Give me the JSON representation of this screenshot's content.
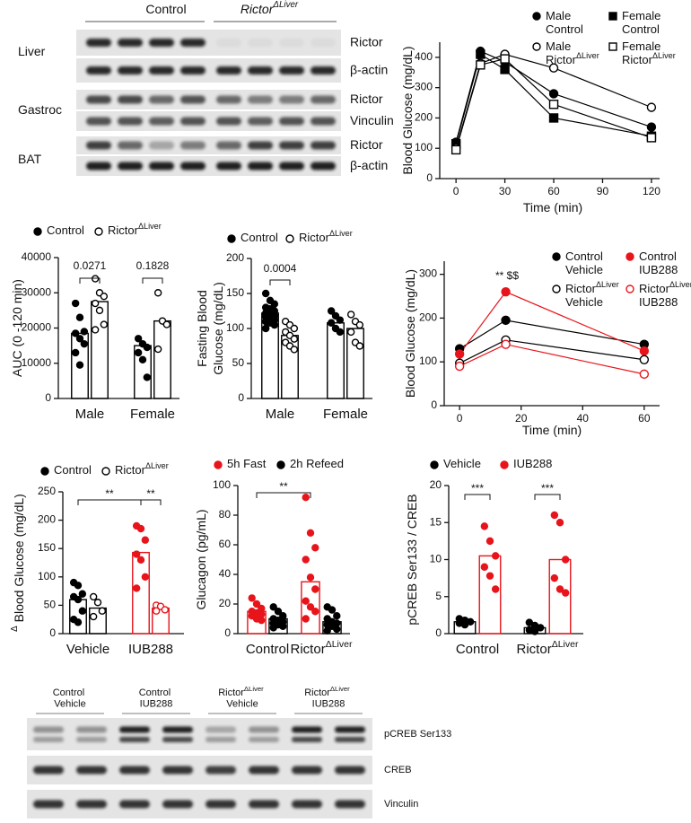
{
  "chart_data": [
    {
      "type": "line",
      "ylabel": "Blood Glucose (mg/dL)",
      "xlabel": "Time (min)",
      "x": [
        0,
        15,
        30,
        60,
        120
      ],
      "xlim": [
        -10,
        125
      ],
      "xticks": [
        0,
        30,
        60,
        90,
        120
      ],
      "ylim": [
        0,
        450
      ],
      "yticks": [
        0,
        100,
        200,
        300,
        400
      ],
      "series": [
        {
          "name": "Male Control",
          "color": "#000000",
          "marker": "circle",
          "filled": true,
          "values": [
            120,
            420,
            385,
            280,
            170
          ]
        },
        {
          "name": "Female Control",
          "color": "#000000",
          "marker": "square",
          "filled": true,
          "values": [
            115,
            410,
            360,
            200,
            140
          ]
        },
        {
          "name": "Male RictorΔLiver",
          "color": "#000000",
          "marker": "circle",
          "filled": false,
          "values": [
            100,
            380,
            410,
            365,
            235
          ]
        },
        {
          "name": "Female RictorΔLiver",
          "color": "#000000",
          "marker": "square",
          "filled": false,
          "values": [
            95,
            375,
            395,
            245,
            135
          ]
        }
      ]
    },
    {
      "type": "bar",
      "ylabel": "AUC (0 -120 min)",
      "categories": [
        "Male",
        "Female"
      ],
      "ylim": [
        0,
        40000
      ],
      "yticks": [
        0,
        10000,
        20000,
        30000,
        40000
      ],
      "series": [
        {
          "name": "Control",
          "color": "#000000",
          "filled": true,
          "values": [
            18500,
            15000
          ],
          "points": [
            [
              27000,
              23000,
              19000,
              18500,
              17000,
              15500,
              13000,
              9500
            ],
            [
              17000,
              15500,
              14500,
              13000,
              11000,
              6000
            ]
          ]
        },
        {
          "name": "RictorΔLiver",
          "color": "#000000",
          "filled": false,
          "values": [
            27500,
            22000
          ],
          "points": [
            [
              34000,
              30000,
              29000,
              27000,
              25000,
              21000,
              19500
            ],
            [
              30000,
              22000,
              21000,
              14000
            ]
          ]
        }
      ],
      "annotations": [
        "0.0271",
        "0.1828"
      ]
    },
    {
      "type": "bar",
      "ylabel": [
        "Fasting Blood",
        "Glucose (mg/dL)"
      ],
      "categories": [
        "Male",
        "Female"
      ],
      "ylim": [
        0,
        200
      ],
      "yticks": [
        0,
        50,
        100,
        150,
        200
      ],
      "series": [
        {
          "name": "Control",
          "color": "#000000",
          "filled": true,
          "values": [
            122,
            108
          ],
          "points": [
            [
              150,
              140,
              135,
              130,
              128,
              125,
              122,
              120,
              118,
              117,
              115,
              112,
              110,
              108,
              105,
              100
            ],
            [
              125,
              118,
              112,
              108,
              100,
              95
            ]
          ]
        },
        {
          "name": "RictorΔLiver",
          "color": "#000000",
          "filled": false,
          "values": [
            90,
            100
          ],
          "points": [
            [
              110,
              105,
              100,
              95,
              90,
              85,
              80,
              75,
              70
            ],
            [
              120,
              110,
              105,
              95,
              80,
              75
            ]
          ]
        }
      ],
      "annotations": [
        "0.0004"
      ]
    },
    {
      "type": "line",
      "ylabel": "Blood Glucose (mg/dL)",
      "xlabel": "Time (min)",
      "x": [
        0,
        15,
        60
      ],
      "xlim": [
        -5,
        65
      ],
      "xticks": [
        0,
        20,
        40,
        60
      ],
      "ylim": [
        0,
        330
      ],
      "yticks": [
        0,
        100,
        200,
        300
      ],
      "series": [
        {
          "name": "Control Vehicle",
          "color": "#000000",
          "marker": "circle",
          "filled": true,
          "values": [
            130,
            195,
            140
          ]
        },
        {
          "name": "Control IUB288",
          "color": "#e8141b",
          "marker": "circle",
          "filled": true,
          "values": [
            118,
            260,
            125
          ]
        },
        {
          "name": "RictorΔLiver Vehicle",
          "color": "#000000",
          "marker": "circle",
          "filled": false,
          "values": [
            97,
            150,
            105
          ]
        },
        {
          "name": "RictorΔLiver IUB288",
          "color": "#e8141b",
          "marker": "circle",
          "filled": false,
          "values": [
            90,
            140,
            72
          ]
        }
      ],
      "annotations": [
        "** $$"
      ]
    },
    {
      "type": "bar",
      "ylabel": "Δ Blood Glucose (mg/dL)",
      "categories": [
        "Vehicle",
        "IUB288"
      ],
      "category_colors": [
        "#000000",
        "#e8141b"
      ],
      "ylim": [
        0,
        250
      ],
      "yticks": [
        0,
        50,
        100,
        150,
        200,
        250
      ],
      "series": [
        {
          "name": "Control",
          "color": "#000000",
          "filled": true,
          "values": [
            60,
            143
          ],
          "points": [
            [
              90,
              85,
              70,
              65,
              60,
              40,
              25,
              20
            ],
            [
              190,
              185,
              165,
              140,
              130,
              100,
              80
            ]
          ]
        },
        {
          "name": "RictorΔLiver",
          "color": "#000000",
          "filled": false,
          "values": [
            45,
            45
          ],
          "points": [
            [
              65,
              55,
              40,
              30
            ],
            [
              50,
              48,
              42,
              40
            ]
          ]
        }
      ],
      "annotations": [
        "**",
        "**"
      ]
    },
    {
      "type": "bar",
      "ylabel": "Glucagon (pg/mL)",
      "categories": [
        "Control",
        "RictorΔLiver"
      ],
      "ylim": [
        0,
        100
      ],
      "yticks": [
        0,
        20,
        40,
        60,
        80,
        100
      ],
      "series": [
        {
          "name": "5h Fast",
          "color": "#e8141b",
          "filled": true,
          "values": [
            15,
            35
          ],
          "points": [
            [
              24,
              20,
              17,
              15,
              14,
              13,
              12,
              10,
              9
            ],
            [
              92,
              68,
              58,
              50,
              38,
              30,
              22,
              18,
              15,
              10
            ]
          ]
        },
        {
          "name": "2h Refeed",
          "color": "#000000",
          "filled": true,
          "values": [
            10,
            8
          ],
          "points": [
            [
              18,
              15,
              12,
              10,
              9,
              8,
              7,
              6,
              5,
              4
            ],
            [
              18,
              16,
              12,
              10,
              8,
              7,
              6,
              5,
              3,
              2
            ]
          ]
        }
      ],
      "annotations": [
        "**"
      ]
    },
    {
      "type": "bar",
      "ylabel": "pCREB Ser133 / CREB",
      "categories": [
        "Control",
        "RictorΔLiver"
      ],
      "ylim": [
        0,
        20
      ],
      "yticks": [
        0,
        5,
        10,
        15,
        20
      ],
      "series": [
        {
          "name": "Vehicle",
          "color": "#000000",
          "filled": true,
          "values": [
            1.6,
            0.8
          ],
          "points": [
            [
              2.0,
              1.8,
              1.6,
              1.4,
              1.2
            ],
            [
              1.5,
              1.1,
              0.8,
              0.5,
              0.3
            ]
          ]
        },
        {
          "name": "IUB288",
          "color": "#e8141b",
          "filled": true,
          "values": [
            10.5,
            10
          ],
          "points": [
            [
              14.5,
              12.5,
              10.5,
              9,
              7.8,
              6
            ],
            [
              16,
              15,
              10,
              7.5,
              6,
              5.5
            ]
          ]
        }
      ],
      "annotations": [
        "***",
        "***"
      ]
    }
  ],
  "blots": [
    {
      "column_groups": [
        "Control",
        "RictorΔLiver"
      ],
      "rows": [
        {
          "tissue": "Liver",
          "proteins": [
            "Rictor",
            "β-actin"
          ]
        },
        {
          "tissue": "Gastroc",
          "proteins": [
            "Rictor",
            "Vinculin"
          ]
        },
        {
          "tissue": "BAT",
          "proteins": [
            "Rictor",
            "β-actin"
          ]
        }
      ]
    },
    {
      "columns": [
        "Control Vehicle",
        "Control IUB288",
        "RictorΔLiver Vehicle",
        "RictorΔLiver IUB288"
      ],
      "rows": [
        "pCREB Ser133",
        "CREB",
        "Vinculin"
      ]
    }
  ]
}
